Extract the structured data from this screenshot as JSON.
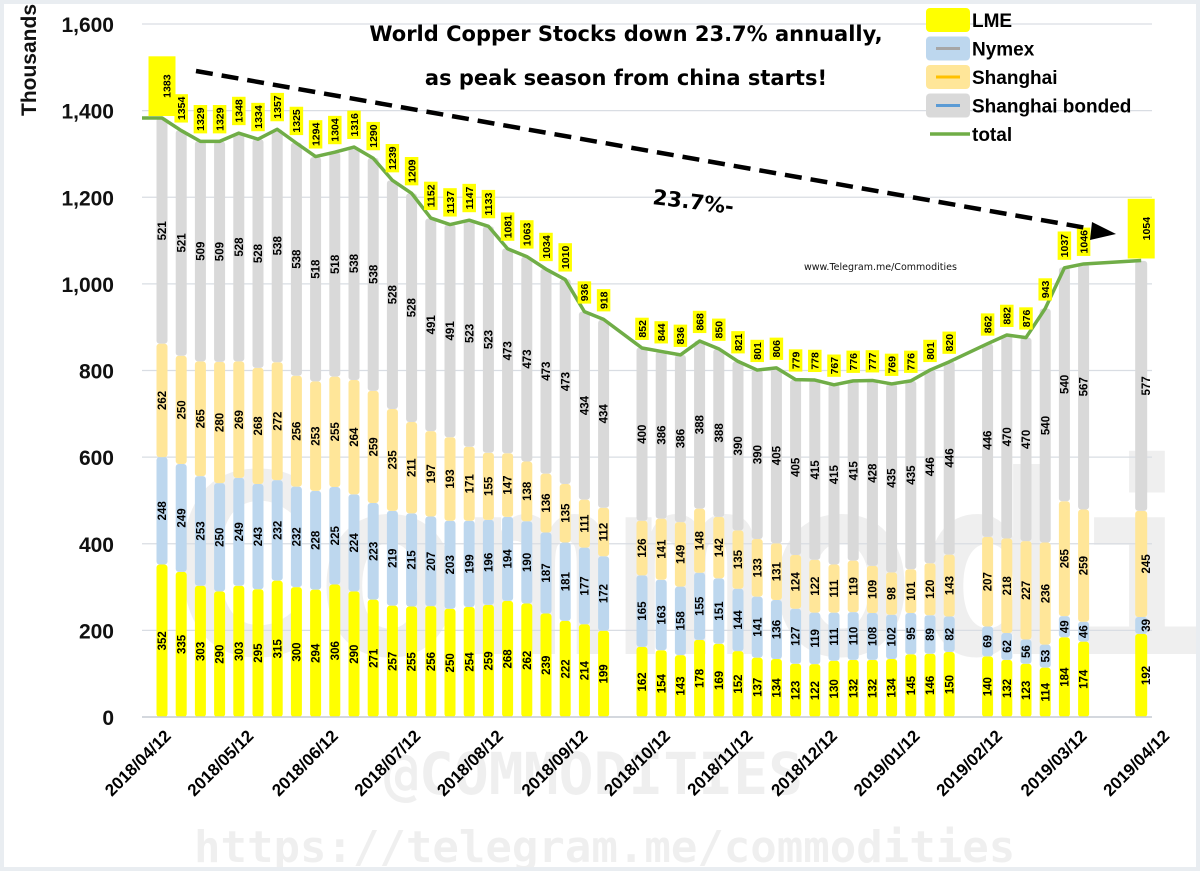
{
  "chart_data": {
    "type": "bar",
    "stacked": true,
    "title": "World Copper Stocks down 23.7% annually,",
    "subtitle": "as peak season from china starts!",
    "ylabel": "Thousands",
    "xlabel": "",
    "ylim": [
      0,
      1600
    ],
    "yticks": [
      0,
      200,
      400,
      600,
      800,
      1000,
      1200,
      1400,
      1600
    ],
    "ytick_labels": [
      "0",
      "200",
      "400",
      "600",
      "800",
      "1,000",
      "1,200",
      "1,400",
      "1,600"
    ],
    "grid": true,
    "legend_position": "top-right",
    "x_slots": 52,
    "xtick_labels": [
      {
        "slot": 0,
        "label": "2018/04/12"
      },
      {
        "slot": 4.3,
        "label": "2018/05/12"
      },
      {
        "slot": 8.7,
        "label": "2018/06/12"
      },
      {
        "slot": 13,
        "label": "2018/07/12"
      },
      {
        "slot": 17.3,
        "label": "2018/08/12"
      },
      {
        "slot": 21.7,
        "label": "2018/09/12"
      },
      {
        "slot": 26,
        "label": "2018/10/12"
      },
      {
        "slot": 30.3,
        "label": "2018/11/12"
      },
      {
        "slot": 34.7,
        "label": "2018/12/12"
      },
      {
        "slot": 39,
        "label": "2019/01/12"
      },
      {
        "slot": 43.3,
        "label": "2019/02/12"
      },
      {
        "slot": 47.7,
        "label": "2019/03/12"
      },
      {
        "slot": 52,
        "label": "2019/04/12"
      }
    ],
    "series_names": [
      "LME",
      "Nymex",
      "Shanghai",
      "Shanghai bonded"
    ],
    "series_colors": [
      "#ffff00",
      "#bdd7ee",
      "#ffe699",
      "#d9d9d9"
    ],
    "total_name": "total",
    "total_color": "#70ad47",
    "bars": [
      {
        "slot": 0,
        "LME": 352,
        "Nymex": 248,
        "Shanghai": 262,
        "Shanghai bonded": 521,
        "total": 1383
      },
      {
        "slot": 1,
        "LME": 335,
        "Nymex": 249,
        "Shanghai": 250,
        "Shanghai bonded": 521,
        "total": 1354
      },
      {
        "slot": 2,
        "LME": 303,
        "Nymex": 253,
        "Shanghai": 265,
        "Shanghai bonded": 509,
        "total": 1329
      },
      {
        "slot": 3,
        "LME": 290,
        "Nymex": 250,
        "Shanghai": 280,
        "Shanghai bonded": 509,
        "total": 1329
      },
      {
        "slot": 4,
        "LME": 303,
        "Nymex": 249,
        "Shanghai": 269,
        "Shanghai bonded": 528,
        "total": 1348
      },
      {
        "slot": 5,
        "LME": 295,
        "Nymex": 243,
        "Shanghai": 268,
        "Shanghai bonded": 528,
        "total": 1334
      },
      {
        "slot": 6,
        "LME": 315,
        "Nymex": 232,
        "Shanghai": 272,
        "Shanghai bonded": 538,
        "total": 1357
      },
      {
        "slot": 7,
        "LME": 300,
        "Nymex": 232,
        "Shanghai": 256,
        "Shanghai bonded": 538,
        "total": 1325
      },
      {
        "slot": 8,
        "LME": 294,
        "Nymex": 228,
        "Shanghai": 253,
        "Shanghai bonded": 518,
        "total": 1294
      },
      {
        "slot": 9,
        "LME": 306,
        "Nymex": 225,
        "Shanghai": 255,
        "Shanghai bonded": 518,
        "total": 1304
      },
      {
        "slot": 10,
        "LME": 290,
        "Nymex": 224,
        "Shanghai": 264,
        "Shanghai bonded": 538,
        "total": 1316
      },
      {
        "slot": 11,
        "LME": 271,
        "Nymex": 223,
        "Shanghai": 259,
        "Shanghai bonded": 538,
        "total": 1290
      },
      {
        "slot": 12,
        "LME": 257,
        "Nymex": 219,
        "Shanghai": 235,
        "Shanghai bonded": 528,
        "total": 1239
      },
      {
        "slot": 13,
        "LME": 255,
        "Nymex": 215,
        "Shanghai": 211,
        "Shanghai bonded": 528,
        "total": 1209
      },
      {
        "slot": 14,
        "LME": 256,
        "Nymex": 207,
        "Shanghai": 197,
        "Shanghai bonded": 491,
        "total": 1152
      },
      {
        "slot": 15,
        "LME": 250,
        "Nymex": 203,
        "Shanghai": 193,
        "Shanghai bonded": 491,
        "total": 1137
      },
      {
        "slot": 16,
        "LME": 254,
        "Nymex": 199,
        "Shanghai": 171,
        "Shanghai bonded": 523,
        "total": 1147
      },
      {
        "slot": 17,
        "LME": 259,
        "Nymex": 196,
        "Shanghai": 155,
        "Shanghai bonded": 523,
        "total": 1133
      },
      {
        "slot": 18,
        "LME": 268,
        "Nymex": 194,
        "Shanghai": 147,
        "Shanghai bonded": 473,
        "total": 1081
      },
      {
        "slot": 19,
        "LME": 262,
        "Nymex": 190,
        "Shanghai": 138,
        "Shanghai bonded": 473,
        "total": 1063
      },
      {
        "slot": 20,
        "LME": 239,
        "Nymex": 187,
        "Shanghai": 136,
        "Shanghai bonded": 473,
        "total": 1034
      },
      {
        "slot": 21,
        "LME": 222,
        "Nymex": 181,
        "Shanghai": 135,
        "Shanghai bonded": 473,
        "total": 1010
      },
      {
        "slot": 22,
        "LME": 214,
        "Nymex": 177,
        "Shanghai": 111,
        "Shanghai bonded": 434,
        "total": 936
      },
      {
        "slot": 23,
        "LME": 199,
        "Nymex": 172,
        "Shanghai": 112,
        "Shanghai bonded": 434,
        "total": 918
      },
      {
        "slot": 25,
        "LME": 162,
        "Nymex": 165,
        "Shanghai": 126,
        "Shanghai bonded": 400,
        "total": 852
      },
      {
        "slot": 26,
        "LME": 154,
        "Nymex": 163,
        "Shanghai": 141,
        "Shanghai bonded": 386,
        "total": 844
      },
      {
        "slot": 27,
        "LME": 143,
        "Nymex": 158,
        "Shanghai": 149,
        "Shanghai bonded": 386,
        "total": 836
      },
      {
        "slot": 28,
        "LME": 178,
        "Nymex": 155,
        "Shanghai": 148,
        "Shanghai bonded": 388,
        "total": 868
      },
      {
        "slot": 29,
        "LME": 169,
        "Nymex": 151,
        "Shanghai": 142,
        "Shanghai bonded": 388,
        "total": 850
      },
      {
        "slot": 30,
        "LME": 152,
        "Nymex": 144,
        "Shanghai": 135,
        "Shanghai bonded": 390,
        "total": 821
      },
      {
        "slot": 31,
        "LME": 137,
        "Nymex": 141,
        "Shanghai": 133,
        "Shanghai bonded": 390,
        "total": 801
      },
      {
        "slot": 32,
        "LME": 134,
        "Nymex": 136,
        "Shanghai": 131,
        "Shanghai bonded": 405,
        "total": 806
      },
      {
        "slot": 33,
        "LME": 123,
        "Nymex": 127,
        "Shanghai": 124,
        "Shanghai bonded": 405,
        "total": 779
      },
      {
        "slot": 34,
        "LME": 122,
        "Nymex": 119,
        "Shanghai": 122,
        "Shanghai bonded": 415,
        "total": 778
      },
      {
        "slot": 35,
        "LME": 130,
        "Nymex": 111,
        "Shanghai": 111,
        "Shanghai bonded": 415,
        "total": 767
      },
      {
        "slot": 36,
        "LME": 132,
        "Nymex": 110,
        "Shanghai": 119,
        "Shanghai bonded": 415,
        "total": 776
      },
      {
        "slot": 37,
        "LME": 132,
        "Nymex": 108,
        "Shanghai": 109,
        "Shanghai bonded": 428,
        "total": 777
      },
      {
        "slot": 38,
        "LME": 134,
        "Nymex": 102,
        "Shanghai": 98,
        "Shanghai bonded": 435,
        "total": 769
      },
      {
        "slot": 39,
        "LME": 145,
        "Nymex": 95,
        "Shanghai": 101,
        "Shanghai bonded": 435,
        "total": 776
      },
      {
        "slot": 40,
        "LME": 146,
        "Nymex": 89,
        "Shanghai": 120,
        "Shanghai bonded": 446,
        "total": 801
      },
      {
        "slot": 41,
        "LME": 150,
        "Nymex": 82,
        "Shanghai": 143,
        "Shanghai bonded": 446,
        "total": 820
      },
      {
        "slot": 43,
        "LME": 140,
        "Nymex": 69,
        "Shanghai": 207,
        "Shanghai bonded": 446,
        "total": 862
      },
      {
        "slot": 44,
        "LME": 132,
        "Nymex": 62,
        "Shanghai": 218,
        "Shanghai bonded": 470,
        "total": 882
      },
      {
        "slot": 45,
        "LME": 123,
        "Nymex": 56,
        "Shanghai": 227,
        "Shanghai bonded": 470,
        "total": 876
      },
      {
        "slot": 46,
        "LME": 114,
        "Nymex": 53,
        "Shanghai": 236,
        "Shanghai bonded": 540,
        "total": 943
      },
      {
        "slot": 47,
        "LME": 184,
        "Nymex": 49,
        "Shanghai": 265,
        "Shanghai bonded": 540,
        "total": 1037
      },
      {
        "slot": 48,
        "LME": 174,
        "Nymex": 46,
        "Shanghai": 259,
        "Shanghai bonded": 567,
        "total": 1046
      },
      {
        "slot": 51,
        "LME": 192,
        "Nymex": 39,
        "Shanghai": 245,
        "Shanghai bonded": 577,
        "total": 1054,
        "emphasized": true
      }
    ],
    "annotations": {
      "start_value": "1383",
      "end_value": "1054",
      "change_label": "23.7%-",
      "trend_arrow": "dashed arrow from start value to end value"
    }
  },
  "watermarks": {
    "url_small": "www.Telegram.me/Commodities",
    "url_bottom": "https://telegram.me/commodities",
    "handle": "@COMMODITIES",
    "brand": "Commodities"
  }
}
